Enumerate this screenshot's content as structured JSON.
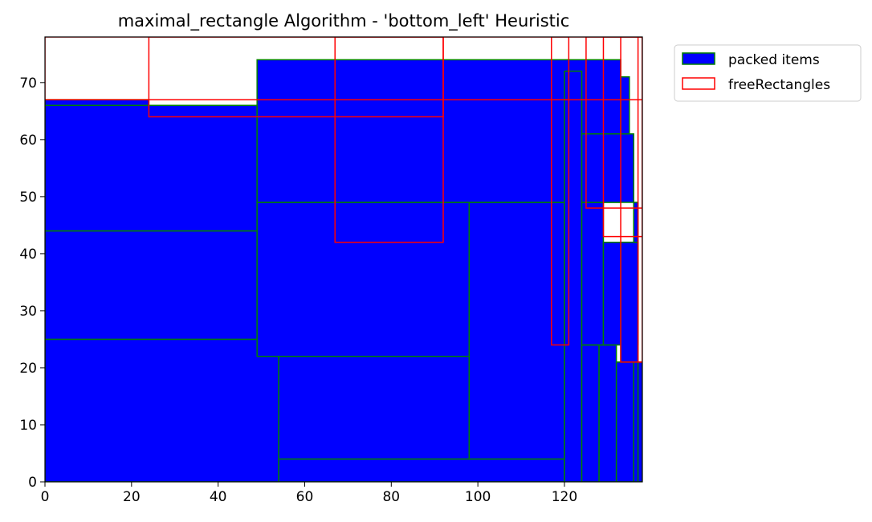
{
  "chart_data": {
    "type": "rectangles",
    "title": "maximal_rectangle Algorithm - 'bottom_left' Heuristic",
    "xlabel": "",
    "ylabel": "",
    "xlim": [
      0,
      138
    ],
    "ylim": [
      0,
      78
    ],
    "xticks": [
      "0",
      "20",
      "40",
      "60",
      "80",
      "100",
      "120"
    ],
    "yticks": [
      "0",
      "10",
      "20",
      "30",
      "40",
      "50",
      "60",
      "70"
    ],
    "grid": false,
    "legend_position": "outside-top-right",
    "series": [
      {
        "name": "packed items",
        "fill": "#0000ff",
        "stroke": "#008000",
        "rects": [
          {
            "x": 0,
            "y": 0,
            "w": 54,
            "h": 25
          },
          {
            "x": 0,
            "y": 25,
            "w": 49,
            "h": 19
          },
          {
            "x": 0,
            "y": 44,
            "w": 49,
            "h": 22
          },
          {
            "x": 0,
            "y": 66,
            "w": 24,
            "h": 1
          },
          {
            "x": 54,
            "y": 0,
            "w": 66,
            "h": 4
          },
          {
            "x": 54,
            "y": 4,
            "w": 44,
            "h": 18
          },
          {
            "x": 49,
            "y": 22,
            "w": 49,
            "h": 27
          },
          {
            "x": 98,
            "y": 4,
            "w": 22,
            "h": 45
          },
          {
            "x": 49,
            "y": 49,
            "w": 84,
            "h": 25
          },
          {
            "x": 120,
            "y": 0,
            "w": 4,
            "h": 72
          },
          {
            "x": 124,
            "y": 0,
            "w": 4,
            "h": 24
          },
          {
            "x": 128,
            "y": 0,
            "w": 4,
            "h": 24
          },
          {
            "x": 124,
            "y": 24,
            "w": 5,
            "h": 25
          },
          {
            "x": 132,
            "y": 0,
            "w": 4,
            "h": 21
          },
          {
            "x": 129,
            "y": 24,
            "w": 8,
            "h": 18
          },
          {
            "x": 136,
            "y": 0,
            "w": 1,
            "h": 21
          },
          {
            "x": 137,
            "y": 0,
            "w": 1,
            "h": 21
          },
          {
            "x": 133,
            "y": 21,
            "w": 4,
            "h": 21
          },
          {
            "x": 124,
            "y": 49,
            "w": 12,
            "h": 12
          },
          {
            "x": 133,
            "y": 61,
            "w": 2,
            "h": 10
          },
          {
            "x": 136,
            "y": 42,
            "w": 1,
            "h": 7
          }
        ]
      },
      {
        "name": "freeRectangles",
        "fill": "none",
        "stroke": "#ff0000",
        "rects": [
          {
            "x": 24,
            "y": 64,
            "w": 68,
            "h": 14
          },
          {
            "x": 67,
            "y": 42,
            "w": 25,
            "h": 36
          },
          {
            "x": 0,
            "y": 67,
            "w": 138,
            "h": 11
          },
          {
            "x": 117,
            "y": 24,
            "w": 4,
            "h": 54
          },
          {
            "x": 125,
            "y": 48,
            "w": 13,
            "h": 30
          },
          {
            "x": 129,
            "y": 43,
            "w": 9,
            "h": 35
          },
          {
            "x": 133,
            "y": 21,
            "w": 5,
            "h": 57
          },
          {
            "x": 137,
            "y": 21,
            "w": 1,
            "h": 57
          }
        ]
      }
    ]
  }
}
